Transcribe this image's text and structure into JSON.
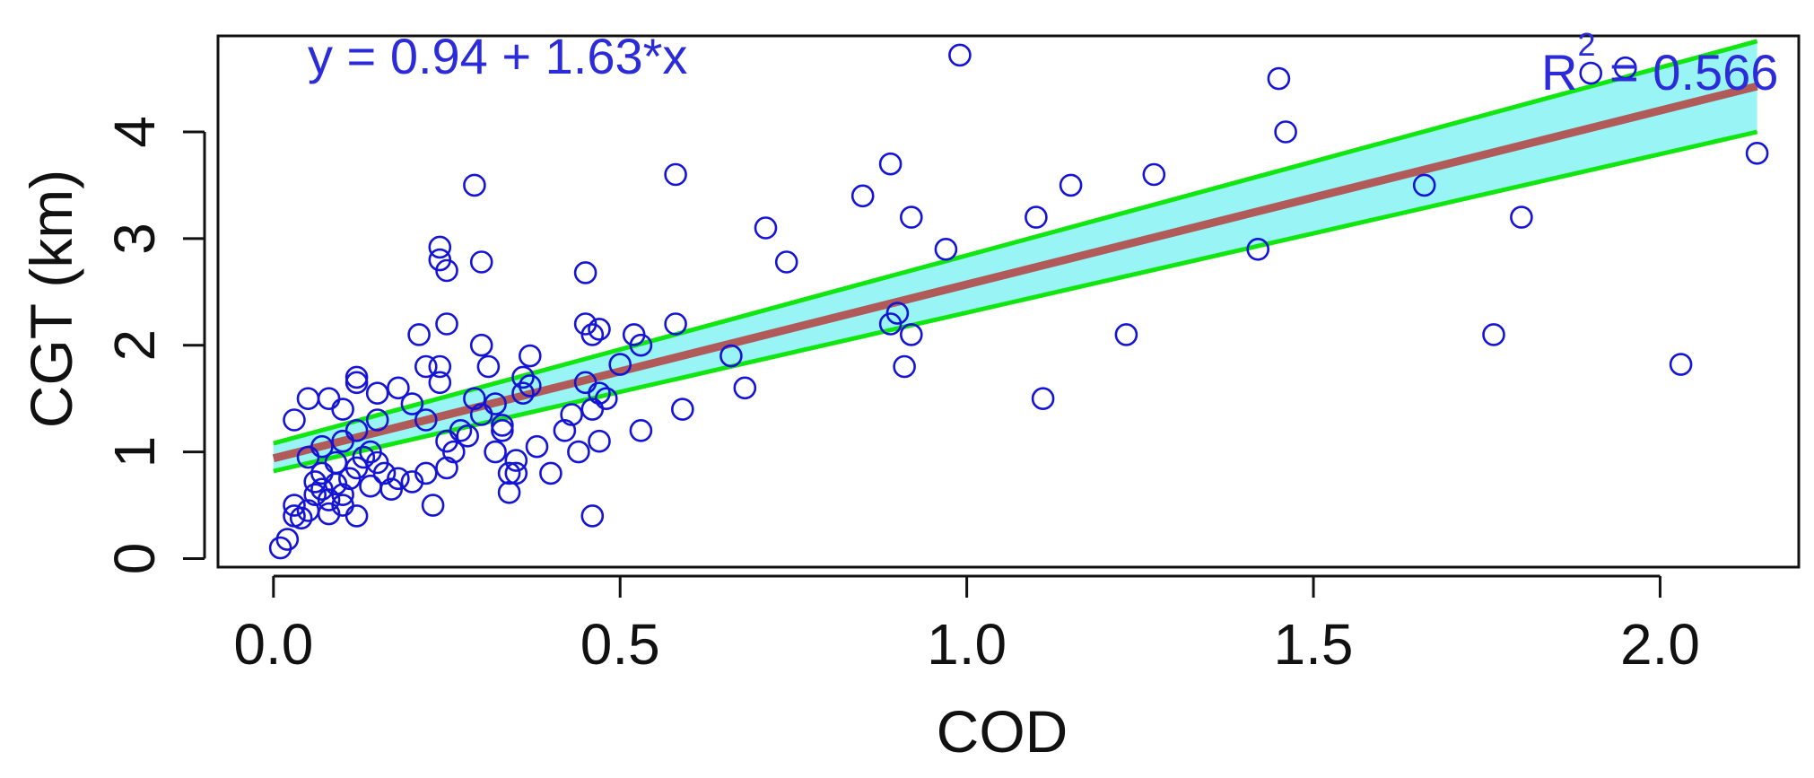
{
  "chart_data": {
    "type": "scatter",
    "title": "",
    "xlabel": "COD",
    "ylabel": "CGT (km)",
    "xlim": [
      -0.08,
      2.2
    ],
    "ylim": [
      -0.08,
      4.9
    ],
    "x_ticks": [
      "0.0",
      "0.5",
      "1.0",
      "1.5",
      "2.0"
    ],
    "y_ticks": [
      "0",
      "1",
      "2",
      "3",
      "4"
    ],
    "grid": false,
    "legend": "none",
    "annotations": {
      "equation": "y = 0.94 + 1.63*x",
      "r2_prefix": "R",
      "r2_superscript": "2",
      "r2_value": " = 0.566"
    },
    "fit": {
      "intercept": 0.94,
      "slope": 1.63,
      "x_range": [
        0.0,
        2.14
      ]
    },
    "confidence_band": {
      "lower_at_start": 0.82,
      "upper_at_start": 1.08,
      "lower_at_end": 4.0,
      "upper_at_end": 4.85
    },
    "colors": {
      "points": "#1414d6",
      "fit": "#b05a5a",
      "band_fill": "#99f5f5",
      "band_edge": "#11e611",
      "annotation": "#2b2bd9",
      "axis": "#111111"
    },
    "series": [
      {
        "points": [
          [
            0.01,
            0.1
          ],
          [
            0.02,
            0.18
          ],
          [
            0.03,
            0.4
          ],
          [
            0.03,
            0.5
          ],
          [
            0.04,
            0.38
          ],
          [
            0.05,
            0.45
          ],
          [
            0.06,
            0.6
          ],
          [
            0.06,
            0.72
          ],
          [
            0.07,
            0.8
          ],
          [
            0.07,
            0.65
          ],
          [
            0.08,
            0.55
          ],
          [
            0.08,
            0.42
          ],
          [
            0.09,
            0.7
          ],
          [
            0.09,
            0.9
          ],
          [
            0.1,
            0.6
          ],
          [
            0.1,
            0.5
          ],
          [
            0.11,
            0.75
          ],
          [
            0.12,
            0.85
          ],
          [
            0.12,
            0.4
          ],
          [
            0.13,
            0.95
          ],
          [
            0.14,
            0.68
          ],
          [
            0.15,
            0.9
          ],
          [
            0.16,
            0.8
          ],
          [
            0.05,
            0.95
          ],
          [
            0.07,
            1.05
          ],
          [
            0.1,
            1.1
          ],
          [
            0.12,
            1.2
          ],
          [
            0.15,
            1.3
          ],
          [
            0.03,
            1.3
          ],
          [
            0.05,
            1.5
          ],
          [
            0.08,
            1.5
          ],
          [
            0.1,
            1.4
          ],
          [
            0.12,
            1.65
          ],
          [
            0.12,
            1.7
          ],
          [
            0.14,
            1.0
          ],
          [
            0.15,
            1.55
          ],
          [
            0.17,
            0.65
          ],
          [
            0.18,
            0.75
          ],
          [
            0.2,
            0.72
          ],
          [
            0.22,
            0.8
          ],
          [
            0.18,
            1.6
          ],
          [
            0.2,
            1.45
          ],
          [
            0.22,
            1.3
          ],
          [
            0.21,
            2.1
          ],
          [
            0.22,
            1.8
          ],
          [
            0.24,
            1.65
          ],
          [
            0.25,
            2.2
          ],
          [
            0.24,
            1.8
          ],
          [
            0.25,
            1.1
          ],
          [
            0.26,
            1.0
          ],
          [
            0.27,
            1.2
          ],
          [
            0.28,
            1.15
          ],
          [
            0.29,
            1.5
          ],
          [
            0.23,
            0.5
          ],
          [
            0.25,
            0.85
          ],
          [
            0.3,
            1.35
          ],
          [
            0.32,
            1.45
          ],
          [
            0.33,
            1.25
          ],
          [
            0.34,
            0.62
          ],
          [
            0.35,
            0.92
          ],
          [
            0.36,
            1.55
          ],
          [
            0.37,
            1.62
          ],
          [
            0.24,
            2.8
          ],
          [
            0.24,
            2.92
          ],
          [
            0.25,
            2.7
          ],
          [
            0.29,
            3.5
          ],
          [
            0.3,
            2.78
          ],
          [
            0.3,
            2.0
          ],
          [
            0.31,
            1.8
          ],
          [
            0.32,
            1.0
          ],
          [
            0.33,
            1.2
          ],
          [
            0.34,
            0.8
          ],
          [
            0.35,
            0.8
          ],
          [
            0.36,
            1.7
          ],
          [
            0.37,
            1.9
          ],
          [
            0.38,
            1.05
          ],
          [
            0.4,
            0.8
          ],
          [
            0.42,
            1.2
          ],
          [
            0.43,
            1.35
          ],
          [
            0.44,
            1.0
          ],
          [
            0.45,
            1.65
          ],
          [
            0.46,
            1.4
          ],
          [
            0.47,
            1.55
          ],
          [
            0.5,
            1.82
          ],
          [
            0.45,
            2.68
          ],
          [
            0.45,
            2.2
          ],
          [
            0.46,
            2.1
          ],
          [
            0.47,
            2.15
          ],
          [
            0.47,
            1.1
          ],
          [
            0.46,
            0.4
          ],
          [
            0.48,
            1.5
          ],
          [
            0.52,
            2.1
          ],
          [
            0.53,
            2.0
          ],
          [
            0.53,
            1.2
          ],
          [
            0.58,
            2.2
          ],
          [
            0.59,
            1.4
          ],
          [
            0.58,
            3.6
          ],
          [
            0.66,
            1.9
          ],
          [
            0.68,
            1.6
          ],
          [
            0.71,
            3.1
          ],
          [
            0.74,
            2.78
          ],
          [
            0.85,
            3.4
          ],
          [
            0.89,
            3.7
          ],
          [
            0.89,
            2.2
          ],
          [
            0.9,
            2.3
          ],
          [
            0.91,
            1.8
          ],
          [
            0.92,
            2.1
          ],
          [
            0.92,
            3.2
          ],
          [
            0.97,
            2.9
          ],
          [
            0.99,
            4.72
          ],
          [
            1.1,
            3.2
          ],
          [
            1.11,
            1.5
          ],
          [
            1.15,
            3.5
          ],
          [
            1.23,
            2.1
          ],
          [
            1.27,
            3.6
          ],
          [
            1.42,
            2.9
          ],
          [
            1.45,
            4.5
          ],
          [
            1.46,
            4.0
          ],
          [
            1.66,
            3.5
          ],
          [
            1.76,
            2.1
          ],
          [
            1.8,
            3.2
          ],
          [
            1.9,
            4.55
          ],
          [
            1.95,
            4.6
          ],
          [
            2.03,
            1.82
          ],
          [
            2.14,
            3.8
          ]
        ]
      }
    ]
  }
}
